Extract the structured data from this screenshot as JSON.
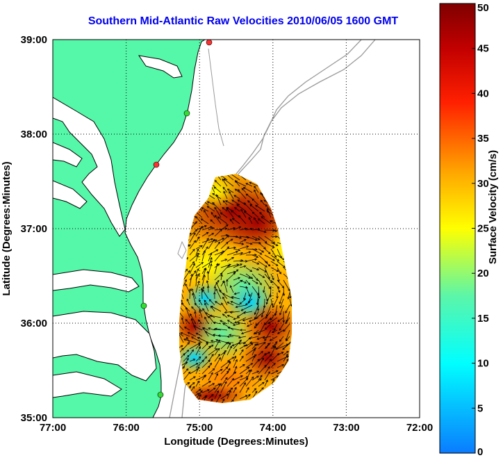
{
  "title": "Southern Mid-Atlantic Raw Velocities 2010/06/05 1600 GMT",
  "map": {
    "xlabel": "Longitude (Degrees:Minutes)",
    "ylabel": "Latitude (Degrees:Minutes)",
    "lon_ticks": [
      "77:00",
      "76:00",
      "75:00",
      "74:00",
      "73:00",
      "72:00"
    ],
    "lat_ticks": [
      "39:00",
      "38:00",
      "37:00",
      "36:00",
      "35:00"
    ],
    "lon_range": [
      -77,
      -72
    ],
    "lat_range": [
      35,
      39
    ],
    "grid": "dotted",
    "land_color": "#55f7a8",
    "contour_color": "#999999",
    "station_markers": [
      {
        "color": "#ff3030"
      },
      {
        "color": "#33dd33"
      },
      {
        "color": "#ff3030"
      },
      {
        "color": "#33dd33"
      },
      {
        "color": "#33dd33"
      }
    ]
  },
  "colorbar": {
    "label": "Surface Velocity (cm/s)",
    "ticks": [
      "0",
      "5",
      "10",
      "15",
      "20",
      "25",
      "30",
      "35",
      "40",
      "45",
      "50"
    ],
    "min": 0,
    "max": 50,
    "colormap": "jet"
  }
}
